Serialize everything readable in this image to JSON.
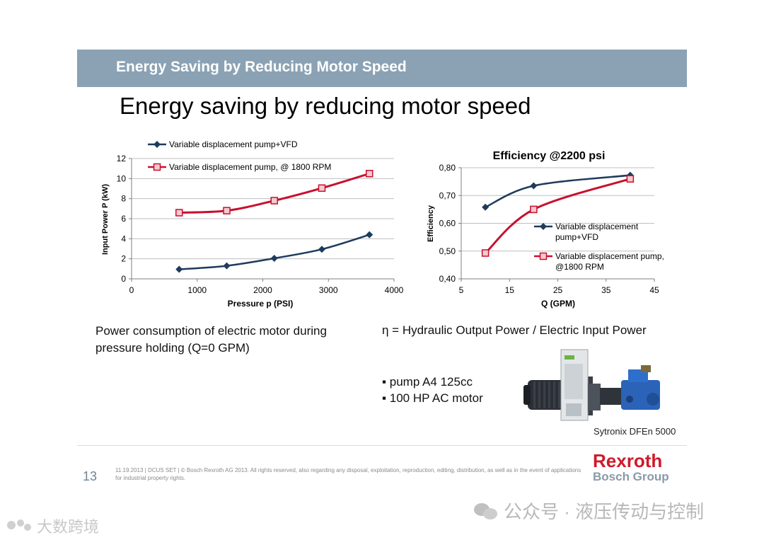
{
  "header": {
    "banner_title": "Energy Saving by Reducing Motor Speed"
  },
  "slide": {
    "title": "Energy saving by reducing motor speed"
  },
  "colors": {
    "series_vfd": "#1f3b5c",
    "series_1800": "#c8102e",
    "banner": "#8aa2b4",
    "brand_red": "#cf1a2a",
    "brand_grey": "#8b9aa6"
  },
  "chart_data": [
    {
      "type": "line",
      "title": "",
      "xlabel": "Pressure  p (PSI)",
      "ylabel": "Input Power P (kW)",
      "xlim": [
        0,
        4000
      ],
      "ylim": [
        0,
        12
      ],
      "xticks": [
        0,
        1000,
        2000,
        3000,
        4000
      ],
      "yticks": [
        0,
        2,
        4,
        6,
        8,
        10,
        12
      ],
      "xtick_labels": [
        "0",
        "1000",
        "2000",
        "3000",
        "4000"
      ],
      "ytick_labels": [
        "0",
        "2",
        "4",
        "6",
        "8",
        "10",
        "12"
      ],
      "grid": true,
      "legend_position": "top-left",
      "series": [
        {
          "name": "Variable displacement pump+VFD",
          "marker": "diamond",
          "x": [
            725,
            1450,
            2175,
            2900,
            3625
          ],
          "y": [
            0.95,
            1.3,
            2.05,
            2.95,
            4.4
          ]
        },
        {
          "name": "Variable displacement pump, @ 1800 RPM",
          "marker": "square",
          "x": [
            725,
            1450,
            2175,
            2900,
            3625
          ],
          "y": [
            6.6,
            6.8,
            7.8,
            9.05,
            10.5
          ]
        }
      ]
    },
    {
      "type": "line",
      "title": "Efficiency @2200 psi",
      "xlabel": "Q (GPM)",
      "ylabel": "Efficiency",
      "xlim": [
        5,
        45
      ],
      "ylim": [
        0.4,
        0.8
      ],
      "xticks": [
        5,
        15,
        25,
        35,
        45
      ],
      "yticks": [
        0.4,
        0.5,
        0.6,
        0.7,
        0.8
      ],
      "xtick_labels": [
        "5",
        "15",
        "25",
        "35",
        "45"
      ],
      "ytick_labels": [
        "0,40",
        "0,50",
        "0,60",
        "0,70",
        "0,80"
      ],
      "grid": true,
      "legend_position": "center-right",
      "series": [
        {
          "name": "Variable displacement pump+VFD",
          "legend_lines": [
            "Variable displacement",
            "pump+VFD"
          ],
          "marker": "diamond",
          "x": [
            10,
            20,
            40
          ],
          "y": [
            0.658,
            0.735,
            0.773
          ]
        },
        {
          "name": "Variable displacement pump, @1800 RPM",
          "legend_lines": [
            "Variable displacement pump,",
            "@1800 RPM"
          ],
          "marker": "square",
          "x": [
            10,
            20,
            40
          ],
          "y": [
            0.493,
            0.65,
            0.76
          ]
        }
      ]
    }
  ],
  "notes": {
    "power_line1": "Power consumption of electric motor  during",
    "power_line2": "pressure holding (Q=0 GPM)",
    "efficiency_formula": "η =  Hydraulic Output Power / Electric Input Power"
  },
  "bullets": [
    "▪ pump A4 125cc",
    "▪  100 HP AC motor"
  ],
  "photo": {
    "caption": "Sytronix DFEn 5000"
  },
  "footer": {
    "page_number": "13",
    "text": "11.19.2013 | DCUS SET | © Bosch Rexroth AG 2013. All rights reserved, also regarding any disposal, exploitation, reproduction, editing, distribution, as well as in the event of applications for industrial property rights.",
    "logo_main": "Rexroth",
    "logo_sub": "Bosch Group"
  },
  "watermarks": {
    "right": "公众号 · 液压传动与控制",
    "left": "大数跨境"
  }
}
